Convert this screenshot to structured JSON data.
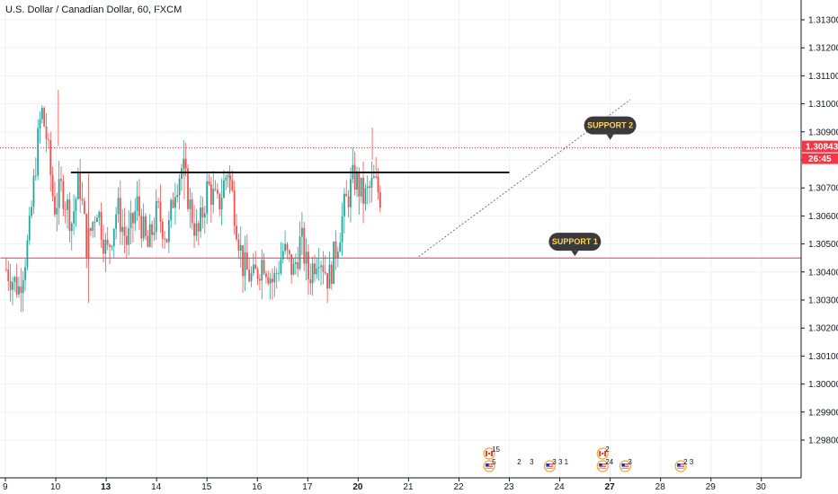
{
  "header": {
    "title": "U.S. Dollar / Canadian Dollar, 60, FXCM"
  },
  "chart_data": {
    "type": "candlestick",
    "symbol": "U.S. Dollar / Canadian Dollar",
    "interval": "60",
    "source": "FXCM",
    "x_ticks": [
      "9",
      "10",
      "13",
      "14",
      "15",
      "16",
      "17",
      "20",
      "21",
      "22",
      "23",
      "24",
      "27",
      "28",
      "29",
      "30"
    ],
    "y_ticks": [
      "1.31300",
      "1.31200",
      "1.31100",
      "1.31000",
      "1.30900",
      "1.30800",
      "1.30700",
      "1.30600",
      "1.30500",
      "1.30400",
      "1.30300",
      "1.30200",
      "1.30100",
      "1.30000",
      "1.29900",
      "1.29800"
    ],
    "ylim": [
      1.2975,
      1.3138
    ],
    "last_price": "1.30843",
    "countdown": "26:45",
    "series_path": [
      [
        9.0,
        1.3041
      ],
      [
        9.25,
        1.3034
      ],
      [
        9.45,
        1.3052
      ],
      [
        9.6,
        1.3082
      ],
      [
        9.7,
        1.3098
      ],
      [
        9.8,
        1.3088
      ],
      [
        9.95,
        1.3063
      ],
      [
        10.1,
        1.307
      ],
      [
        10.3,
        1.3058
      ],
      [
        10.45,
        1.3073
      ],
      [
        10.6,
        1.3049
      ],
      [
        10.8,
        1.3064
      ],
      [
        13.0,
        1.3046
      ],
      [
        13.2,
        1.3063
      ],
      [
        13.4,
        1.305
      ],
      [
        13.6,
        1.3064
      ],
      [
        13.8,
        1.3048
      ],
      [
        14.0,
        1.3062
      ],
      [
        14.2,
        1.3052
      ],
      [
        14.35,
        1.3071
      ],
      [
        14.5,
        1.3078
      ],
      [
        14.65,
        1.3063
      ],
      [
        14.8,
        1.3052
      ],
      [
        15.0,
        1.3071
      ],
      [
        15.2,
        1.3063
      ],
      [
        15.4,
        1.3077
      ],
      [
        15.55,
        1.306
      ],
      [
        15.7,
        1.3042
      ],
      [
        15.9,
        1.3037
      ],
      [
        16.1,
        1.3045
      ],
      [
        16.3,
        1.3036
      ],
      [
        16.5,
        1.3048
      ],
      [
        16.7,
        1.304
      ],
      [
        16.85,
        1.3052
      ],
      [
        17.0,
        1.3038
      ],
      [
        17.2,
        1.3048
      ],
      [
        17.4,
        1.3037
      ],
      [
        17.55,
        1.3049
      ],
      [
        17.7,
        1.3062
      ],
      [
        17.9,
        1.3074
      ],
      [
        18.1,
        1.3066
      ],
      [
        18.3,
        1.3072
      ],
      [
        18.5,
        1.3064
      ],
      [
        18.7,
        1.3074
      ],
      [
        18.85,
        1.3063
      ],
      [
        19.0,
        1.3051
      ],
      [
        19.15,
        1.3045
      ],
      [
        19.3,
        1.3046
      ],
      [
        19.45,
        1.3054
      ],
      [
        19.6,
        1.3065
      ],
      [
        19.75,
        1.3075
      ],
      [
        19.9,
        1.3062
      ],
      [
        20.05,
        1.307
      ],
      [
        20.15,
        1.3079
      ],
      [
        20.25,
        1.309
      ],
      [
        20.35,
        1.3086
      ],
      [
        20.45,
        1.3083
      ]
    ],
    "horizontal_lines": [
      {
        "price": 1.30755,
        "x_from": 10.3,
        "x_to": 23.0,
        "color": "#131722"
      },
      {
        "price": 1.3045,
        "x_from": 8.9,
        "x_to": 32.0,
        "color": "#f23645"
      }
    ],
    "trend_line": {
      "from": [
        19.2,
        1.30455
      ],
      "to": [
        25.4,
        1.31015
      ]
    },
    "annotations": [
      {
        "text": "SUPPORT 2",
        "x": 25.0,
        "y": 1.30923
      },
      {
        "text": "SUPPORT 1",
        "x": 24.3,
        "y": 1.30508
      }
    ],
    "events": [
      {
        "x": 22.6,
        "flag": "ca",
        "num": "15",
        "row": 1
      },
      {
        "x": 22.6,
        "flag": "us",
        "num": "5",
        "row": 2
      },
      {
        "x": 23.1,
        "flag": "none",
        "num": "2",
        "row": 2
      },
      {
        "x": 23.35,
        "flag": "none",
        "num": "3",
        "row": 2
      },
      {
        "x": 23.8,
        "flag": "us",
        "num": "3 3 1",
        "row": 2
      },
      {
        "x": 24.85,
        "flag": "ca",
        "num": "2",
        "row": 1
      },
      {
        "x": 24.85,
        "flag": "us",
        "num": "24",
        "row": 2
      },
      {
        "x": 25.3,
        "flag": "us",
        "num": "3",
        "row": 2
      },
      {
        "x": 26.4,
        "flag": "us",
        "num": "2 3",
        "row": 2
      }
    ]
  },
  "colors": {
    "up": "#26a69a",
    "down": "#ef5350",
    "grid": "#eef0f3",
    "axis_border": "#131722",
    "resistance": "#131722",
    "support": "#f23645",
    "price_line": "#f23645",
    "label_bg": "#3a3a3a",
    "label_text": "#ffd35a"
  }
}
